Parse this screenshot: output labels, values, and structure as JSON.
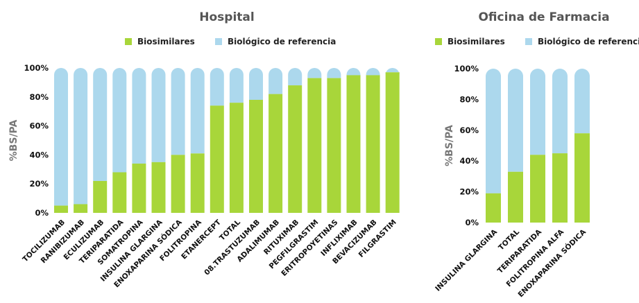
{
  "colors": {
    "biosimilares": "#a8d63a",
    "referencia": "#acd8ed"
  },
  "chart_data": [
    {
      "type": "bar",
      "stacked": true,
      "title": "Hospital",
      "ylabel": "%BS/PA",
      "xlabel": "",
      "ylim": [
        0,
        100
      ],
      "yticks": [
        "0%",
        "20%",
        "40%",
        "60%",
        "80%",
        "100%"
      ],
      "legend": "top",
      "categories": [
        "TOCILIZUMAB",
        "RANIBIZUMAB",
        "ECULIZUMAB",
        "TERIPARATIDA",
        "SOMATROPINA",
        "INSULINA GLARGINA",
        "ENOXAPARINA SÓDICA",
        "FOLITROPINA",
        "ETANERCEPT",
        "TOTAL",
        "08.TRASTUZUMAB",
        "ADALIMUMAB",
        "RITUXIMAB",
        "PEGFILGRASTIM",
        "ERITROPOYETINAS",
        "INFLIXIMAB",
        "BEVACIZUMAB",
        "FILGRASTIM"
      ],
      "series": [
        {
          "name": "Biosimilares",
          "values": [
            5,
            6,
            22,
            28,
            34,
            35,
            40,
            41,
            74,
            76,
            78,
            82,
            88,
            93,
            93,
            95,
            95,
            97
          ]
        },
        {
          "name": "Biológico de referencia",
          "values": [
            95,
            94,
            78,
            72,
            66,
            65,
            60,
            59,
            26,
            24,
            22,
            18,
            12,
            7,
            7,
            5,
            5,
            3
          ]
        }
      ]
    },
    {
      "type": "bar",
      "stacked": true,
      "title": "Oficina de Farmacia",
      "ylabel": "%BS/PA",
      "xlabel": "",
      "ylim": [
        0,
        100
      ],
      "yticks": [
        "0%",
        "20%",
        "40%",
        "60%",
        "80%",
        "100%"
      ],
      "legend": "top",
      "categories": [
        "INSULINA GLARGINA",
        "TOTAL",
        "TERIPARATIDA",
        "FOLITROPINA ALFA",
        "ENOXAPARINA SÓDICA"
      ],
      "series": [
        {
          "name": "Biosimilares",
          "values": [
            19,
            33,
            44,
            45,
            58
          ]
        },
        {
          "name": "Biológico de referencia",
          "values": [
            81,
            67,
            56,
            55,
            42
          ]
        }
      ]
    }
  ]
}
